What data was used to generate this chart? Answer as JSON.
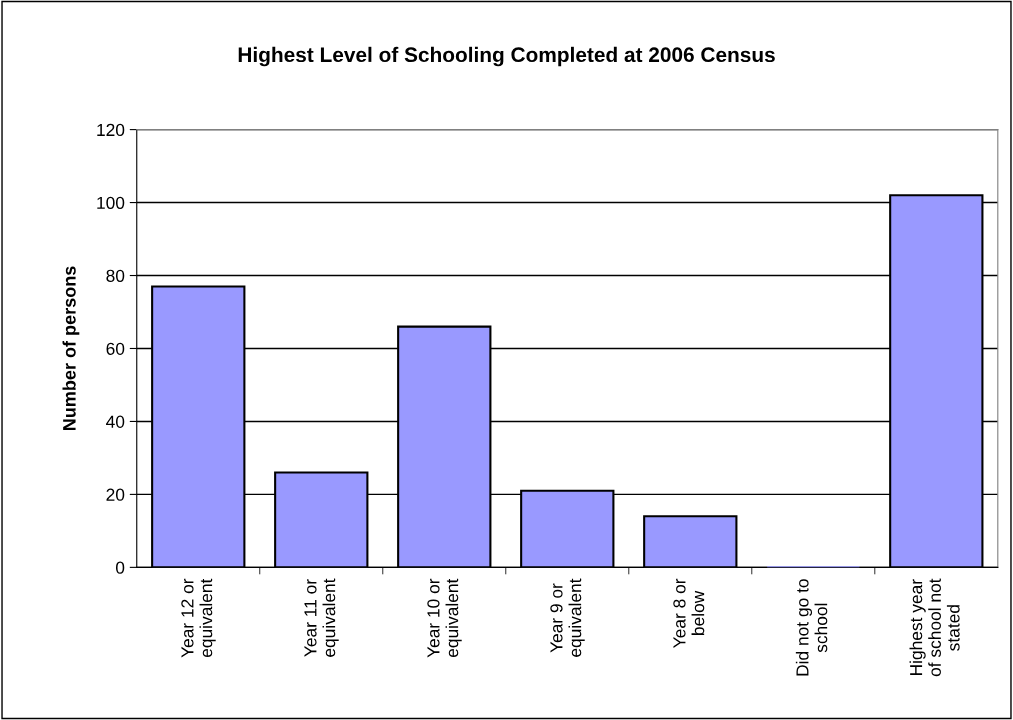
{
  "chart_data": {
    "type": "bar",
    "title": "Highest Level of Schooling Completed at 2006 Census",
    "ylabel": "Number of persons",
    "categories": [
      "Year 12 or\nequivalent",
      "Year 11 or\nequivalent",
      "Year 10 or\nequivalent",
      "Year 9 or\nequivalent",
      "Year 8 or\nbelow",
      "Did not go to\nschool",
      "Highest year\nof school not\nstated"
    ],
    "values": [
      77,
      26,
      66,
      21,
      14,
      0,
      102
    ],
    "color": "#9999ff",
    "ylim": [
      0,
      120
    ],
    "yticks": [
      0,
      20,
      40,
      60,
      80,
      100,
      120
    ],
    "grid": "y"
  }
}
